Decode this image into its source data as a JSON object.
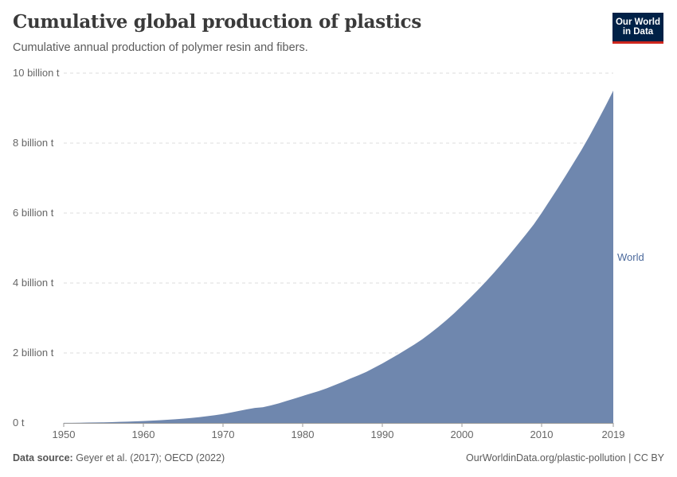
{
  "title": "Cumulative global production of plastics",
  "subtitle": "Cumulative annual production of polymer resin and fibers.",
  "logo": {
    "line1": "Our World",
    "line2": "in Data",
    "bg": "#002147",
    "accent": "#ce261e"
  },
  "footer": {
    "source_label": "Data source:",
    "source_text": "Geyer et al. (2017); OECD (2022)",
    "right_text": "OurWorldinData.org/plastic-pollution | CC BY"
  },
  "chart_data": {
    "type": "area",
    "title": "Cumulative global production of plastics",
    "xlabel": "",
    "ylabel": "",
    "xlim": [
      1950,
      2019
    ],
    "ylim": [
      0,
      10
    ],
    "grid": true,
    "y_ticks": [
      {
        "value": 0,
        "label": "0 t"
      },
      {
        "value": 2,
        "label": "2 billion t"
      },
      {
        "value": 4,
        "label": "4 billion t"
      },
      {
        "value": 6,
        "label": "6 billion t"
      },
      {
        "value": 8,
        "label": "8 billion t"
      },
      {
        "value": 10,
        "label": "10 billion t"
      }
    ],
    "x_ticks": [
      {
        "value": 1950,
        "label": "1950"
      },
      {
        "value": 1960,
        "label": "1960"
      },
      {
        "value": 1970,
        "label": "1970"
      },
      {
        "value": 1980,
        "label": "1980"
      },
      {
        "value": 1990,
        "label": "1990"
      },
      {
        "value": 2000,
        "label": "2000"
      },
      {
        "value": 2010,
        "label": "2010"
      },
      {
        "value": 2019,
        "label": "2019"
      }
    ],
    "series": [
      {
        "name": "World",
        "color": "#6f87ae",
        "label_color": "#4c6a9c",
        "unit": "billion t",
        "x": [
          1950,
          1951,
          1952,
          1953,
          1954,
          1955,
          1956,
          1957,
          1958,
          1959,
          1960,
          1961,
          1962,
          1963,
          1964,
          1965,
          1966,
          1967,
          1968,
          1969,
          1970,
          1971,
          1972,
          1973,
          1974,
          1975,
          1976,
          1977,
          1978,
          1979,
          1980,
          1981,
          1982,
          1983,
          1984,
          1985,
          1986,
          1987,
          1988,
          1989,
          1990,
          1991,
          1992,
          1993,
          1994,
          1995,
          1996,
          1997,
          1998,
          1999,
          2000,
          2001,
          2002,
          2003,
          2004,
          2005,
          2006,
          2007,
          2008,
          2009,
          2010,
          2011,
          2012,
          2013,
          2014,
          2015,
          2016,
          2017,
          2018,
          2019
        ],
        "values": [
          0.002,
          0.004,
          0.006,
          0.01,
          0.014,
          0.018,
          0.024,
          0.03,
          0.037,
          0.045,
          0.055,
          0.065,
          0.077,
          0.09,
          0.105,
          0.123,
          0.143,
          0.166,
          0.192,
          0.222,
          0.257,
          0.297,
          0.343,
          0.39,
          0.43,
          0.45,
          0.5,
          0.56,
          0.63,
          0.7,
          0.77,
          0.84,
          0.91,
          0.99,
          1.08,
          1.17,
          1.27,
          1.36,
          1.46,
          1.58,
          1.7,
          1.83,
          1.96,
          2.1,
          2.24,
          2.39,
          2.56,
          2.74,
          2.93,
          3.13,
          3.35,
          3.57,
          3.8,
          4.04,
          4.29,
          4.55,
          4.82,
          5.1,
          5.38,
          5.67,
          6.0,
          6.35,
          6.7,
          7.06,
          7.43,
          7.8,
          8.2,
          8.62,
          9.05,
          9.5
        ]
      }
    ]
  }
}
